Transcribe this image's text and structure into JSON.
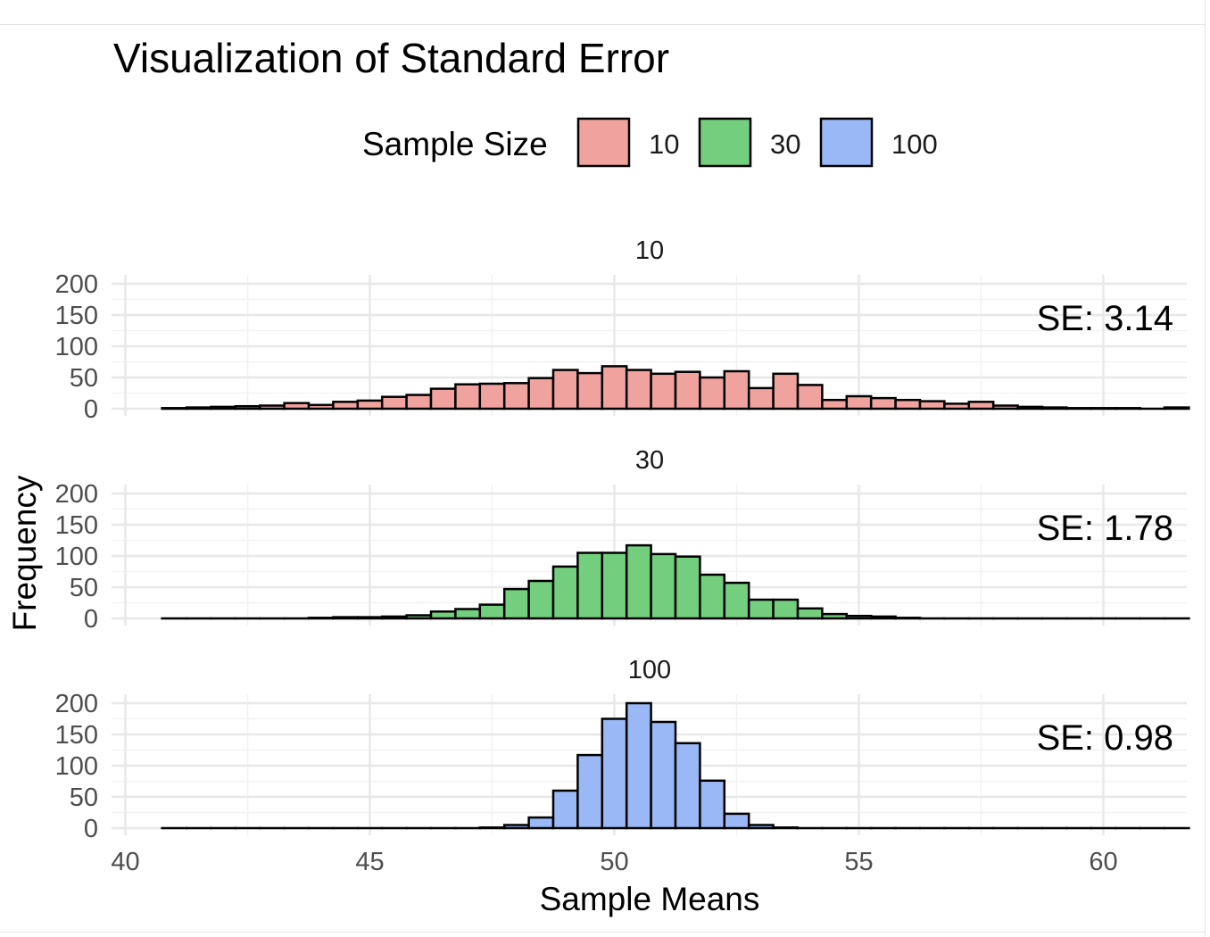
{
  "chart_data": {
    "type": "histogram",
    "title": "Visualization of Standard Error",
    "xlabel": "Sample Means",
    "ylabel": "Frequency",
    "xlim": [
      40,
      61
    ],
    "x_ticks": [
      40,
      45,
      50,
      55,
      60
    ],
    "ylim": [
      0,
      200
    ],
    "y_ticks": [
      0,
      50,
      100,
      150,
      200
    ],
    "grid": true,
    "legend": {
      "title": "Sample Size",
      "position": "top",
      "entries": [
        "10",
        "30",
        "100"
      ]
    },
    "bin_start": 40.75,
    "bin_width": 0.5,
    "facets": [
      {
        "label": "10",
        "se_label": "SE: 3.14",
        "color": "#F0A39E",
        "counts": [
          1,
          2,
          3,
          4,
          5,
          9,
          6,
          11,
          13,
          19,
          22,
          32,
          39,
          40,
          41,
          49,
          62,
          57,
          68,
          62,
          56,
          59,
          50,
          60,
          33,
          56,
          38,
          14,
          20,
          17,
          14,
          12,
          8,
          11,
          5,
          3,
          2,
          1,
          1,
          1,
          0,
          2
        ]
      },
      {
        "label": "30",
        "se_label": "SE: 1.78",
        "color": "#73CF7E",
        "counts": [
          0,
          0,
          0,
          0,
          0,
          0,
          1,
          2,
          2,
          3,
          5,
          11,
          15,
          22,
          47,
          60,
          83,
          105,
          105,
          117,
          103,
          99,
          70,
          57,
          30,
          30,
          16,
          7,
          4,
          3,
          1,
          0,
          0,
          0,
          0,
          0,
          0,
          0,
          0,
          0,
          0,
          0
        ]
      },
      {
        "label": "100",
        "se_label": "SE: 0.98",
        "color": "#9AB8F5",
        "counts": [
          0,
          0,
          0,
          0,
          0,
          0,
          0,
          0,
          0,
          0,
          0,
          0,
          0,
          1,
          5,
          17,
          60,
          117,
          175,
          200,
          170,
          136,
          76,
          23,
          5,
          1,
          0,
          0,
          0,
          0,
          0,
          0,
          0,
          0,
          0,
          0,
          0,
          0,
          0,
          0,
          0,
          0
        ]
      }
    ]
  }
}
